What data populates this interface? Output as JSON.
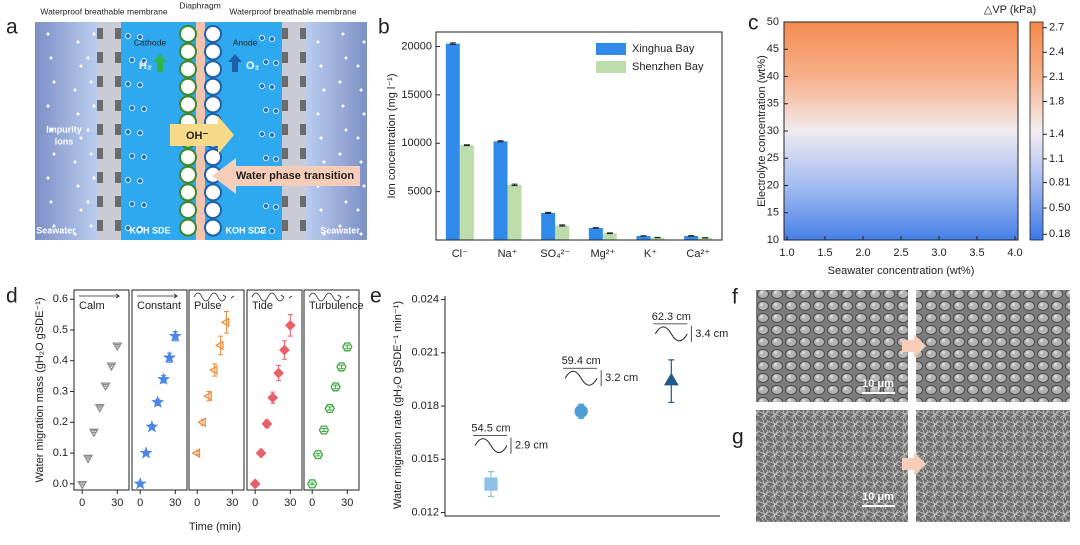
{
  "diagram": {
    "label": "a",
    "top_left": "Waterproof breathable membrane",
    "top_center": "Diaphragm",
    "top_right": "Waterproof breathable membrane",
    "cathode": "Cathode",
    "anode": "Anode",
    "h2": "H₂",
    "o2": "O₂",
    "oh": "OH⁻",
    "impurity_1": "Impurity",
    "impurity_2": "ions",
    "transition": "Water phase transition",
    "seawater_left": "Seawater",
    "seawater_right": "Seawater",
    "koh_left": "KOH SDE",
    "koh_right": "KOH SDE"
  },
  "chart_data": [
    {
      "label": "b",
      "type": "bar",
      "ylabel": "Ion concentration (mg l⁻¹)",
      "categories": [
        "Cl⁻",
        "Na⁺",
        "SO₄²⁻",
        "Mg²⁺",
        "K⁺",
        "Ca²⁺"
      ],
      "series": [
        {
          "name": "Xinghua Bay",
          "color": "#2f8ae9",
          "values": [
            20300,
            10200,
            2800,
            1250,
            420,
            420
          ],
          "errors": [
            80,
            60,
            50,
            30,
            20,
            30
          ]
        },
        {
          "name": "Shenzhen Bay",
          "color": "#bcdcac",
          "values": [
            9800,
            5700,
            1500,
            700,
            250,
            230
          ],
          "errors": [
            50,
            80,
            60,
            40,
            20,
            20
          ]
        }
      ],
      "ylim": [
        0,
        21500
      ],
      "yticks": [
        5000,
        10000,
        15000,
        20000
      ],
      "legend": "upper right"
    },
    {
      "label": "c",
      "type": "heatmap",
      "xlabel": "Seawater concentration (wt%)",
      "ylabel": "Electrolyte concentration (wt%)",
      "colorbar_title": "△VP (kPa)",
      "y": [
        10,
        15,
        20,
        25,
        30,
        35,
        40,
        45,
        50
      ],
      "values": [
        0.18,
        0.5,
        0.81,
        1.1,
        1.4,
        1.8,
        2.1,
        2.4,
        2.7
      ],
      "xlim": [
        0.96,
        4.04
      ],
      "xticks": [
        {
          "value": 1,
          "label": "1.0"
        },
        1.5,
        {
          "value": 2,
          "label": "2.0"
        },
        2.5,
        {
          "value": 3,
          "label": "3.0"
        },
        3.5,
        {
          "value": 4,
          "label": "4.0"
        }
      ],
      "ylim": [
        10,
        50
      ],
      "yticks": [
        10,
        15,
        20,
        25,
        30,
        35,
        40,
        45,
        50
      ],
      "colorscale": [
        "#3a78e6",
        "#9fb8f0",
        "#f4eef0",
        "#f7b08a",
        "#f4884a"
      ],
      "clim": [
        0.11,
        2.77
      ],
      "cticks": [
        0.18,
        {
          "value": 0.5,
          "label": "0.50"
        },
        0.81,
        1.1,
        1.4,
        1.8,
        2.1,
        2.4,
        2.7
      ]
    },
    {
      "label": "d",
      "type": "small_multiples",
      "xlabel": "Time (min)",
      "ylabel": "Water migration mass (gH₂O gSDE⁻¹)",
      "ylim": [
        -0.02,
        0.63
      ],
      "yticks": [
        {
          "value": 0,
          "label": "0.0"
        },
        0.1,
        0.2,
        0.3,
        0.4,
        0.5,
        0.6
      ],
      "xlim": [
        -7,
        40
      ],
      "xticks": [
        0,
        30
      ],
      "panels": [
        {
          "name": "Calm",
          "color": "#8a8a8a",
          "marker": "triangle-down",
          "filled": false,
          "x": [
            0,
            5,
            10,
            15,
            20,
            25,
            30
          ],
          "values": [
            0,
            0.085,
            0.17,
            0.25,
            0.32,
            0.385,
            0.45
          ],
          "errors": [
            0.003,
            0.003,
            0.003,
            0.003,
            0.003,
            0.003,
            0.003
          ]
        },
        {
          "name": "Constant",
          "color": "#4a86e8",
          "marker": "star",
          "filled": true,
          "x": [
            0,
            5,
            10,
            15,
            20,
            25,
            30
          ],
          "values": [
            0,
            0.1,
            0.185,
            0.265,
            0.34,
            0.41,
            0.48
          ],
          "errors": [
            0.003,
            0.005,
            0.008,
            0.01,
            0.012,
            0.015,
            0.015
          ]
        },
        {
          "name": "Pulse",
          "color": "#f08a3c",
          "marker": "triangle-left",
          "filled": false,
          "x": [
            0,
            5,
            10,
            15,
            20,
            25
          ],
          "values": [
            0.1,
            0.2,
            0.285,
            0.37,
            0.45,
            0.525
          ],
          "errors": [
            0.005,
            0.01,
            0.015,
            0.02,
            0.03,
            0.035
          ]
        },
        {
          "name": "Tide",
          "color": "#e8606a",
          "marker": "diamond",
          "filled": true,
          "x": [
            0,
            5,
            10,
            15,
            20,
            25,
            30
          ],
          "values": [
            0,
            0.1,
            0.195,
            0.28,
            0.36,
            0.435,
            0.515
          ],
          "errors": [
            0.003,
            0.008,
            0.012,
            0.018,
            0.025,
            0.03,
            0.035
          ]
        },
        {
          "name": "Turbulence",
          "color": "#3aaa3a",
          "marker": "hexagon",
          "filled": false,
          "x": [
            0,
            5,
            10,
            15,
            20,
            25,
            30
          ],
          "values": [
            0,
            0.095,
            0.175,
            0.245,
            0.315,
            0.38,
            0.445
          ],
          "errors": [
            0.003,
            0.004,
            0.005,
            0.005,
            0.006,
            0.006,
            0.006
          ]
        }
      ]
    },
    {
      "label": "e",
      "type": "scatter",
      "ylabel": "Water migration rate (gH₂O gSDE⁻¹ min⁻¹)",
      "x": [
        1,
        2,
        3
      ],
      "xlim": [
        0.49,
        3.54
      ],
      "values": [
        0.0136,
        0.0177,
        0.0194
      ],
      "errors": [
        0.0007,
        0.0004,
        0.0012
      ],
      "colors": [
        "#8ec1e8",
        "#4b9fd5",
        "#1f5a8a"
      ],
      "markers": [
        "square",
        "circle",
        "triangle-up"
      ],
      "ylim": [
        0.0118,
        0.0242
      ],
      "yticks": [
        0.012,
        0.015,
        0.018,
        0.021,
        0.024
      ],
      "annotations": [
        {
          "length": "54.5 cm",
          "amplitude": "2.9 cm"
        },
        {
          "length": "59.4 cm",
          "amplitude": "3.2 cm"
        },
        {
          "length": "62.3 cm",
          "amplitude": "3.4 cm"
        }
      ]
    }
  ],
  "micrographs": {
    "labels": [
      "f",
      "g"
    ],
    "scale_bars": [
      "10 μm",
      "10 μm"
    ]
  }
}
